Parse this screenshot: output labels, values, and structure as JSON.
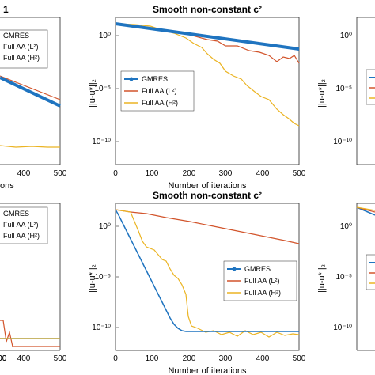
{
  "colors": {
    "gmres": "#1f74c0",
    "aa_l2": "#d2542b",
    "aa_h2": "#ebb423",
    "axis": "#262626",
    "background": "#ffffff"
  },
  "chart_data": [
    {
      "type": "line",
      "panel": "left-top (cropped)",
      "title": "1",
      "xlabel": "ons",
      "ylabel": "",
      "yscale": "log",
      "xlim": [
        0,
        500
      ],
      "x_ticks": [
        "400",
        "500"
      ],
      "y_ticks": [],
      "series": [
        {
          "name": "GMRES",
          "x": [
            0,
            500
          ],
          "y": [
            1e-05,
            1e-09
          ]
        },
        {
          "name": "Full AA (L²)",
          "x": [
            0,
            500
          ],
          "y": [
            8e-06,
            7e-10
          ]
        },
        {
          "name": "Full AA (H²)",
          "x": [
            300,
            500
          ],
          "y": [
            2e-12,
            1.5e-12
          ]
        }
      ],
      "legend": [
        "GMRES",
        "Full AA (L²)",
        "Full AA (H²)"
      ],
      "legend_position": "top-left"
    },
    {
      "type": "line",
      "panel": "center-top",
      "title": "Smooth non-constant c²",
      "xlabel": "Number of iterations",
      "ylabel": "||u-u*||₂",
      "yscale": "log",
      "xlim": [
        0,
        500
      ],
      "ylim": [
        1e-13,
        100
      ],
      "x_ticks": [
        "0",
        "100",
        "200",
        "300",
        "400",
        "500"
      ],
      "y_ticks": [
        "10⁰",
        "10⁻⁵",
        "10⁻¹⁰"
      ],
      "series": [
        {
          "name": "GMRES",
          "x": [
            0,
            500
          ],
          "y": [
            1,
            0.03
          ]
        },
        {
          "name": "Full AA (L²)",
          "x": [
            0,
            100,
            150,
            200,
            300,
            350,
            400,
            450,
            480,
            500
          ],
          "y": [
            1,
            0.5,
            0.3,
            0.2,
            0.07,
            0.05,
            0.02,
            0.015,
            0.01,
            0.002
          ]
        },
        {
          "name": "Full AA (H²)",
          "x": [
            0,
            100,
            200,
            250,
            300,
            350,
            400,
            450,
            480,
            500
          ],
          "y": [
            1,
            0.3,
            0.1,
            0.03,
            0.001,
            0.0005,
            1e-05,
            3e-06,
            1e-06,
            3e-07
          ]
        }
      ],
      "legend": [
        "GMRES",
        "Full AA (L²)",
        "Full AA (H²)"
      ],
      "legend_position": "center-left"
    },
    {
      "type": "line",
      "panel": "right-top (cropped)",
      "title": "",
      "xlabel": "",
      "ylabel": "||u-u*||₂",
      "yscale": "log",
      "y_ticks": [
        "10⁰",
        "10⁻⁵",
        "10⁻¹⁰"
      ],
      "series": [],
      "legend": [],
      "legend_position": "center-left"
    },
    {
      "type": "line",
      "panel": "left-bottom (cropped)",
      "title": "",
      "xlabel": "",
      "ylabel": "",
      "yscale": "log",
      "xlim": [
        0,
        500
      ],
      "ylim": [
        1e-12,
        100
      ],
      "x_ticks": [
        "200",
        "300",
        "400",
        "500"
      ],
      "y_ticks": [],
      "series": [
        {
          "name": "GMRES",
          "x": [
            0,
            500
          ],
          "y": [
            1e-10,
            1e-10
          ]
        },
        {
          "name": "Full AA (L²)",
          "x": [
            0,
            150,
            200,
            220,
            250,
            500
          ],
          "y": [
            1e-08,
            1e-08,
            1e-11,
            3e-10,
            5e-12,
            5e-12
          ]
        },
        {
          "name": "Full AA (H²)",
          "x": [
            0,
            500
          ],
          "y": [
            1e-10,
            1e-10
          ]
        }
      ],
      "legend": [
        "GMRES",
        "Full AA (L²)",
        "Full AA (H²)"
      ],
      "legend_position": "top-left"
    },
    {
      "type": "line",
      "panel": "center-bottom",
      "title": "Smooth non-constant c²",
      "xlabel": "Number of iterations",
      "ylabel": "||u-u*||₂",
      "yscale": "log",
      "xlim": [
        0,
        500
      ],
      "ylim": [
        1e-12,
        100
      ],
      "x_ticks": [
        "0",
        "100",
        "200",
        "300",
        "400",
        "500"
      ],
      "y_ticks": [
        "10⁰",
        "10⁻⁵",
        "10⁻¹⁰"
      ],
      "series": [
        {
          "name": "GMRES",
          "x": [
            0,
            50,
            100,
            150,
            180,
            200,
            250,
            300,
            350,
            400,
            450,
            500
          ],
          "y": [
            1,
            1e-05,
            1e-08,
            1e-10,
            1.5e-11,
            1e-11,
            1e-11,
            1e-11,
            1e-11,
            1e-11,
            1e-11,
            1e-11
          ]
        },
        {
          "name": "Full AA (L²)",
          "x": [
            0,
            40,
            100,
            200,
            300,
            400,
            500
          ],
          "y": [
            1,
            0.3,
            0.1,
            0.05,
            0.02,
            0.008,
            0.002
          ]
        },
        {
          "name": "Full AA (H²)",
          "x": [
            0,
            40,
            60,
            120,
            150,
            200,
            250,
            300,
            350,
            400,
            450,
            500
          ],
          "y": [
            1,
            0.5,
            0.01,
            0.001,
            1e-05,
            1e-08,
            5e-12,
            4e-12,
            6e-12,
            3e-12,
            5e-12,
            4e-12
          ]
        }
      ],
      "legend": [
        "GMRES",
        "Full AA (L²)",
        "Full AA (H²)"
      ],
      "legend_position": "center-right"
    },
    {
      "type": "line",
      "panel": "right-bottom (cropped)",
      "title": "",
      "xlabel": "",
      "ylabel": "||u-u*||₂",
      "yscale": "log",
      "y_ticks": [
        "10⁰",
        "10⁻⁵",
        "10⁻¹⁰"
      ],
      "series": [
        {
          "name": "GMRES",
          "x": [
            0,
            60
          ],
          "y": [
            1,
            0.3
          ]
        },
        {
          "name": "Full AA (L²)",
          "x": [
            0,
            60
          ],
          "y": [
            1,
            0.4
          ]
        },
        {
          "name": "Full AA (H²)",
          "x": [
            0,
            60
          ],
          "y": [
            1,
            0.5
          ]
        }
      ],
      "legend": [],
      "legend_position": "center-left"
    }
  ]
}
